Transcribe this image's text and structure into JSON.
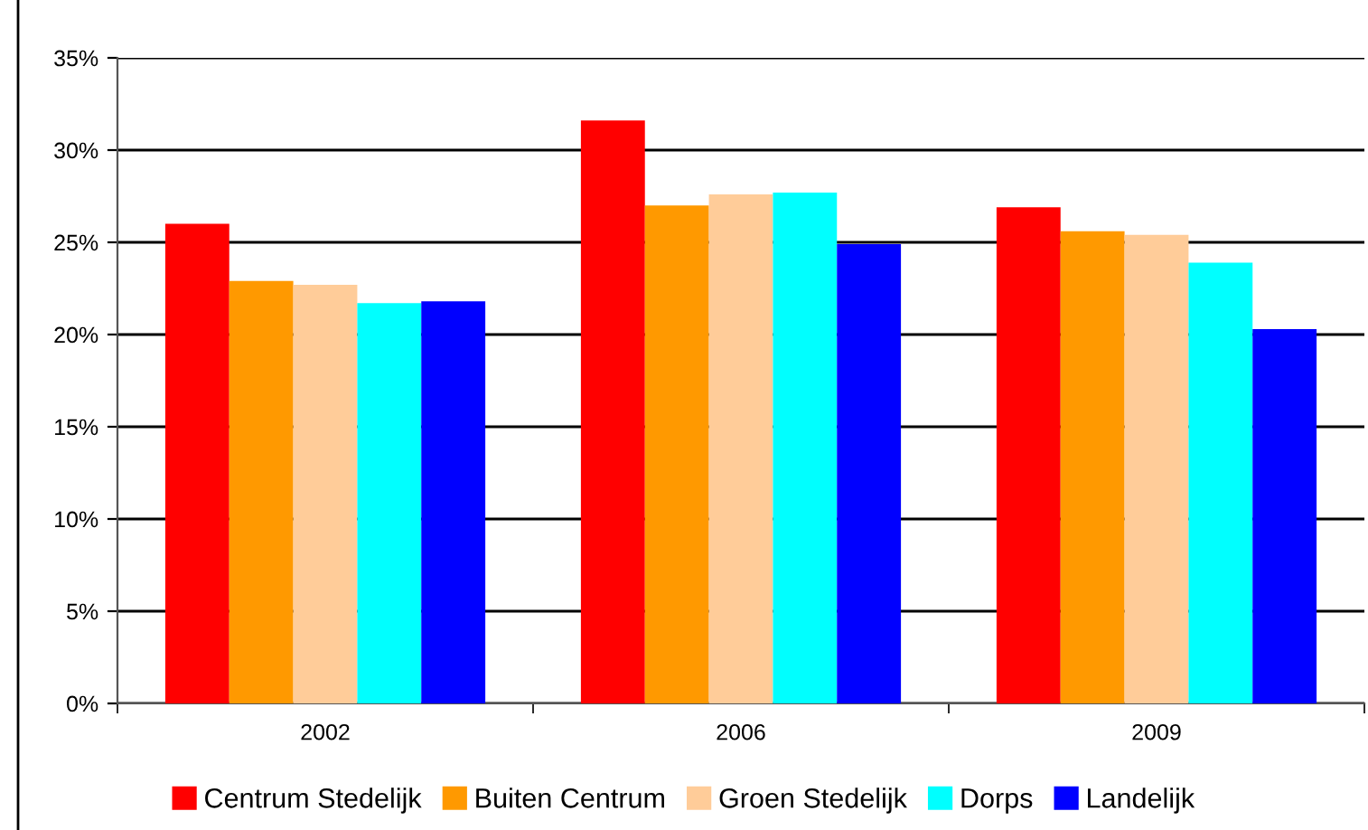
{
  "chart_data": {
    "type": "bar",
    "categories": [
      "2002",
      "2006",
      "2009"
    ],
    "series": [
      {
        "name": "Centrum Stedelijk",
        "color": "#ff0000",
        "values": [
          26.0,
          31.6,
          26.9
        ]
      },
      {
        "name": "Buiten Centrum",
        "color": "#ff9900",
        "values": [
          22.9,
          27.0,
          25.6
        ]
      },
      {
        "name": "Groen Stedelijk",
        "color": "#ffcc99",
        "values": [
          22.7,
          27.6,
          25.4
        ]
      },
      {
        "name": "Dorps",
        "color": "#00ffff",
        "values": [
          21.7,
          27.7,
          23.9
        ]
      },
      {
        "name": "Landelijk",
        "color": "#0000ff",
        "values": [
          21.8,
          24.9,
          20.3
        ]
      }
    ],
    "ylim": [
      0,
      35
    ],
    "yticks": [
      {
        "value": 0,
        "label": "0%"
      },
      {
        "value": 5,
        "label": "5%"
      },
      {
        "value": 10,
        "label": "10%"
      },
      {
        "value": 15,
        "label": "15%"
      },
      {
        "value": 20,
        "label": "20%"
      },
      {
        "value": 25,
        "label": "25%"
      },
      {
        "value": 30,
        "label": "30%"
      },
      {
        "value": 35,
        "label": "35%"
      }
    ],
    "grid": "y",
    "legend": "bottom"
  }
}
